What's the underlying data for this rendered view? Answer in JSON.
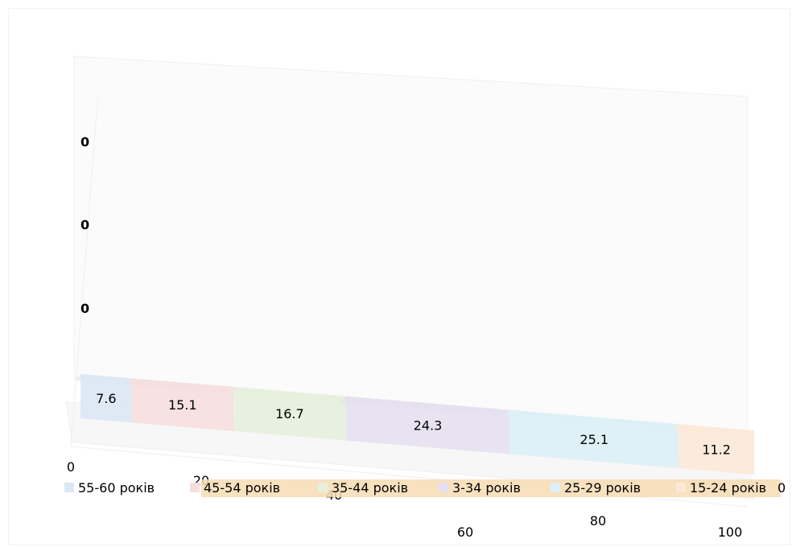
{
  "chart_data": {
    "type": "bar",
    "orientation": "horizontal",
    "stacked": true,
    "three_d": true,
    "categories": [
      ""
    ],
    "series": [
      {
        "name": "55-60 років",
        "values": [
          7.6
        ],
        "color": "#dbe7f4"
      },
      {
        "name": "45-54 років",
        "values": [
          15.1
        ],
        "color": "#f6dede"
      },
      {
        "name": "35-44 років",
        "values": [
          16.7
        ],
        "color": "#e6f0dc"
      },
      {
        "name": "3-34 років",
        "values": [
          24.3
        ],
        "color": "#e4e0ee"
      },
      {
        "name": "25-29 років",
        "values": [
          25.1
        ],
        "color": "#dcf0f6"
      },
      {
        "name": "15-24 років",
        "values": [
          11.2
        ],
        "color": "#fbe9d8"
      }
    ],
    "xlim": [
      0,
      100
    ],
    "x_ticks": [
      "0",
      "20",
      "40",
      "60",
      "80",
      "100"
    ],
    "z_ticks": [
      "0",
      "0",
      "0"
    ],
    "legend_axis_label": "0",
    "legend": {
      "position": "bottom"
    },
    "grid": false
  }
}
